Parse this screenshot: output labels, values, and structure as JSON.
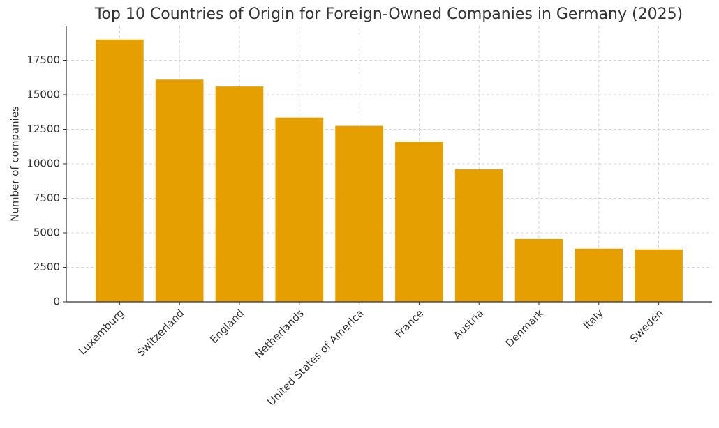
{
  "chart_data": {
    "type": "bar",
    "title": "Top 10 Countries of Origin for Foreign-Owned Companies in Germany (2025)",
    "y_label": "Number of companies",
    "categories": [
      "Luxemburg",
      "Switzerland",
      "England",
      "Netherlands",
      "United States of America",
      "France",
      "Austria",
      "Denmark",
      "Italy",
      "Sweden"
    ],
    "values": [
      19000,
      16100,
      15600,
      13350,
      12750,
      11600,
      9600,
      4550,
      3850,
      3800
    ],
    "color": "#e69f00",
    "ylim": [
      0,
      20000
    ],
    "yticks": [
      0,
      2500,
      5000,
      7500,
      10000,
      12500,
      15000,
      17500
    ],
    "grid": true
  }
}
